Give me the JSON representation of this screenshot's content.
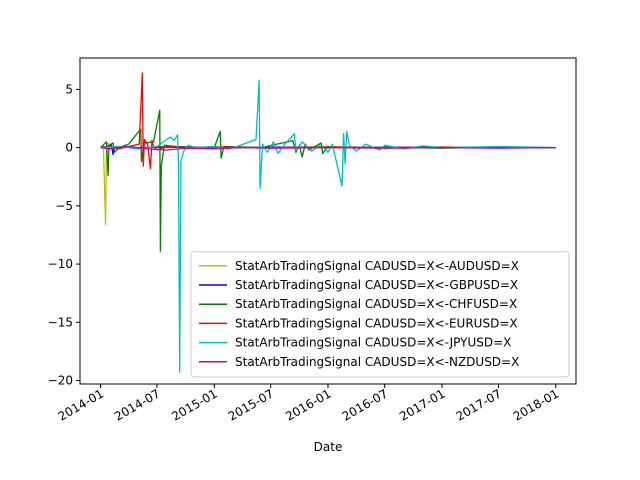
{
  "chart_data": {
    "type": "line",
    "title": "",
    "xlabel": "Date",
    "ylabel": "",
    "xlim": [
      "2013-10-27",
      "2018-03-07"
    ],
    "ylim": [
      -20.3,
      7.7
    ],
    "x_ticks": [
      "2014-01",
      "2014-07",
      "2015-01",
      "2015-07",
      "2016-01",
      "2016-07",
      "2017-01",
      "2017-07",
      "2018-01"
    ],
    "y_ticks": [
      5,
      0,
      -5,
      -10,
      -15,
      -20
    ],
    "legend_position": "lower right",
    "series": [
      {
        "name": "StatArbTradingSignal CADUSD=X<-AUDUSD=X",
        "color": "#bfbf00",
        "points": [
          [
            "2014-01-01",
            0
          ],
          [
            "2014-01-10",
            0.1
          ],
          [
            "2014-01-14",
            -3.5
          ],
          [
            "2014-01-17",
            -6.6
          ],
          [
            "2014-01-20",
            0.1
          ],
          [
            "2014-01-25",
            0.4
          ],
          [
            "2014-02-01",
            0.2
          ],
          [
            "2014-02-15",
            0
          ],
          [
            "2014-03-15",
            0.1
          ],
          [
            "2014-05-01",
            -0.1
          ],
          [
            "2014-07-01",
            0.1
          ],
          [
            "2014-10-01",
            0
          ],
          [
            "2015-01-01",
            0.1
          ],
          [
            "2015-07-01",
            0
          ],
          [
            "2016-01-01",
            0.1
          ],
          [
            "2016-07-01",
            0
          ],
          [
            "2017-01-01",
            0.05
          ],
          [
            "2017-07-01",
            0
          ],
          [
            "2018-01-01",
            0
          ]
        ]
      },
      {
        "name": "StatArbTradingSignal CADUSD=X<-GBPUSD=X",
        "color": "#0000ff",
        "points": [
          [
            "2014-01-01",
            0
          ],
          [
            "2014-01-20",
            0.1
          ],
          [
            "2014-02-05",
            0.2
          ],
          [
            "2014-02-10",
            -0.6
          ],
          [
            "2014-02-12",
            -0.1
          ],
          [
            "2014-03-01",
            0.1
          ],
          [
            "2014-05-01",
            0
          ],
          [
            "2014-08-01",
            0.05
          ],
          [
            "2015-01-01",
            -0.05
          ],
          [
            "2015-07-01",
            0.05
          ],
          [
            "2016-01-01",
            0
          ],
          [
            "2016-07-01",
            0.05
          ],
          [
            "2017-01-01",
            0
          ],
          [
            "2017-07-01",
            0.05
          ],
          [
            "2018-01-01",
            0
          ]
        ]
      },
      {
        "name": "StatArbTradingSignal CADUSD=X<-CHFUSD=X",
        "color": "#008000",
        "points": [
          [
            "2014-01-01",
            0
          ],
          [
            "2014-01-20",
            0.5
          ],
          [
            "2014-01-25",
            -2.4
          ],
          [
            "2014-01-28",
            0.2
          ],
          [
            "2014-02-10",
            0.4
          ],
          [
            "2014-02-15",
            -0.4
          ],
          [
            "2014-03-01",
            0
          ],
          [
            "2014-04-01",
            0.3
          ],
          [
            "2014-05-10",
            1.6
          ],
          [
            "2014-05-12",
            -1.2
          ],
          [
            "2014-05-20",
            0.4
          ],
          [
            "2014-06-20",
            0.5
          ],
          [
            "2014-07-10",
            3.2
          ],
          [
            "2014-07-12",
            -8.9
          ],
          [
            "2014-07-15",
            -1.5
          ],
          [
            "2014-07-25",
            0.2
          ],
          [
            "2014-09-01",
            0.1
          ],
          [
            "2015-01-01",
            0
          ],
          [
            "2015-01-20",
            1.4
          ],
          [
            "2015-01-23",
            -0.9
          ],
          [
            "2015-02-01",
            0.1
          ],
          [
            "2015-06-01",
            0
          ],
          [
            "2015-09-10",
            0.6
          ],
          [
            "2015-09-20",
            -0.4
          ],
          [
            "2015-10-01",
            0.2
          ],
          [
            "2015-10-10",
            -0.8
          ],
          [
            "2015-10-20",
            0.3
          ],
          [
            "2015-11-01",
            -0.2
          ],
          [
            "2015-12-10",
            0.4
          ],
          [
            "2015-12-15",
            -0.5
          ],
          [
            "2016-01-01",
            0.1
          ],
          [
            "2016-03-01",
            0
          ],
          [
            "2016-07-01",
            0.05
          ],
          [
            "2017-01-01",
            -0.05
          ],
          [
            "2017-07-01",
            0.05
          ],
          [
            "2018-01-01",
            0
          ]
        ]
      },
      {
        "name": "StatArbTradingSignal CADUSD=X<-EURUSD=X",
        "color": "#ff0000",
        "points": [
          [
            "2014-01-01",
            0
          ],
          [
            "2014-02-01",
            0.1
          ],
          [
            "2014-03-01",
            -0.1
          ],
          [
            "2014-04-01",
            0.1
          ],
          [
            "2014-05-05",
            0.3
          ],
          [
            "2014-05-15",
            6.4
          ],
          [
            "2014-05-18",
            -1.6
          ],
          [
            "2014-05-22",
            0.7
          ],
          [
            "2014-06-01",
            0.3
          ],
          [
            "2014-06-10",
            -1.8
          ],
          [
            "2014-06-15",
            0.6
          ],
          [
            "2014-06-20",
            0.1
          ],
          [
            "2014-07-01",
            -0.2
          ],
          [
            "2014-08-01",
            0.1
          ],
          [
            "2014-10-01",
            0
          ],
          [
            "2015-01-01",
            0.05
          ],
          [
            "2015-07-01",
            0
          ],
          [
            "2016-01-01",
            0.05
          ],
          [
            "2016-07-01",
            0
          ],
          [
            "2017-01-01",
            0.05
          ],
          [
            "2017-07-01",
            0
          ],
          [
            "2018-01-01",
            0
          ]
        ]
      },
      {
        "name": "StatArbTradingSignal CADUSD=X<-JPYUSD=X",
        "color": "#00bfbf",
        "points": [
          [
            "2014-01-01",
            0
          ],
          [
            "2014-03-01",
            0.1
          ],
          [
            "2014-05-01",
            -0.1
          ],
          [
            "2014-07-01",
            0.1
          ],
          [
            "2014-08-01",
            0.7
          ],
          [
            "2014-08-15",
            0.9
          ],
          [
            "2014-08-25",
            0.6
          ],
          [
            "2014-09-05",
            1.1
          ],
          [
            "2014-09-08",
            -1.3
          ],
          [
            "2014-09-12",
            -19.3
          ],
          [
            "2014-09-16",
            -1.2
          ],
          [
            "2014-09-25",
            -0.3
          ],
          [
            "2014-10-10",
            0.2
          ],
          [
            "2014-11-01",
            0
          ],
          [
            "2015-01-01",
            0.1
          ],
          [
            "2015-02-15",
            -0.1
          ],
          [
            "2015-03-15",
            0.1
          ],
          [
            "2015-05-15",
            0.7
          ],
          [
            "2015-05-25",
            5.8
          ],
          [
            "2015-05-28",
            -3.5
          ],
          [
            "2015-06-05",
            0.3
          ],
          [
            "2015-06-20",
            -0.4
          ],
          [
            "2015-07-10",
            0.5
          ],
          [
            "2015-07-25",
            -0.5
          ],
          [
            "2015-08-15",
            0.3
          ],
          [
            "2015-09-15",
            1.2
          ],
          [
            "2015-09-20",
            -0.3
          ],
          [
            "2015-10-10",
            0.5
          ],
          [
            "2015-11-10",
            -0.3
          ],
          [
            "2015-12-10",
            0.3
          ],
          [
            "2016-01-01",
            -0.4
          ],
          [
            "2016-01-15",
            0.3
          ],
          [
            "2016-02-15",
            -3.3
          ],
          [
            "2016-02-20",
            1.2
          ],
          [
            "2016-02-25",
            -1.4
          ],
          [
            "2016-03-01",
            1.4
          ],
          [
            "2016-03-10",
            0.2
          ],
          [
            "2016-04-01",
            -0.3
          ],
          [
            "2016-05-01",
            0.3
          ],
          [
            "2016-06-15",
            -0.2
          ],
          [
            "2016-07-01",
            0.2
          ],
          [
            "2016-09-01",
            -0.1
          ],
          [
            "2016-11-01",
            0.15
          ],
          [
            "2017-01-01",
            0
          ],
          [
            "2017-07-01",
            0.1
          ],
          [
            "2018-01-01",
            0
          ]
        ]
      },
      {
        "name": "StatArbTradingSignal CADUSD=X<-NZDUSD=X",
        "color": "#bf00bf",
        "points": [
          [
            "2014-01-01",
            0
          ],
          [
            "2014-02-01",
            -0.1
          ],
          [
            "2014-04-01",
            0.1
          ],
          [
            "2014-06-01",
            -0.1
          ],
          [
            "2014-08-01",
            -0.2
          ],
          [
            "2014-10-01",
            -0.05
          ],
          [
            "2015-01-01",
            -0.1
          ],
          [
            "2015-04-01",
            0
          ],
          [
            "2015-07-01",
            -0.05
          ],
          [
            "2016-01-01",
            0
          ],
          [
            "2016-07-01",
            -0.05
          ],
          [
            "2017-01-01",
            0
          ],
          [
            "2017-07-01",
            -0.05
          ],
          [
            "2018-01-01",
            0
          ]
        ]
      }
    ]
  }
}
